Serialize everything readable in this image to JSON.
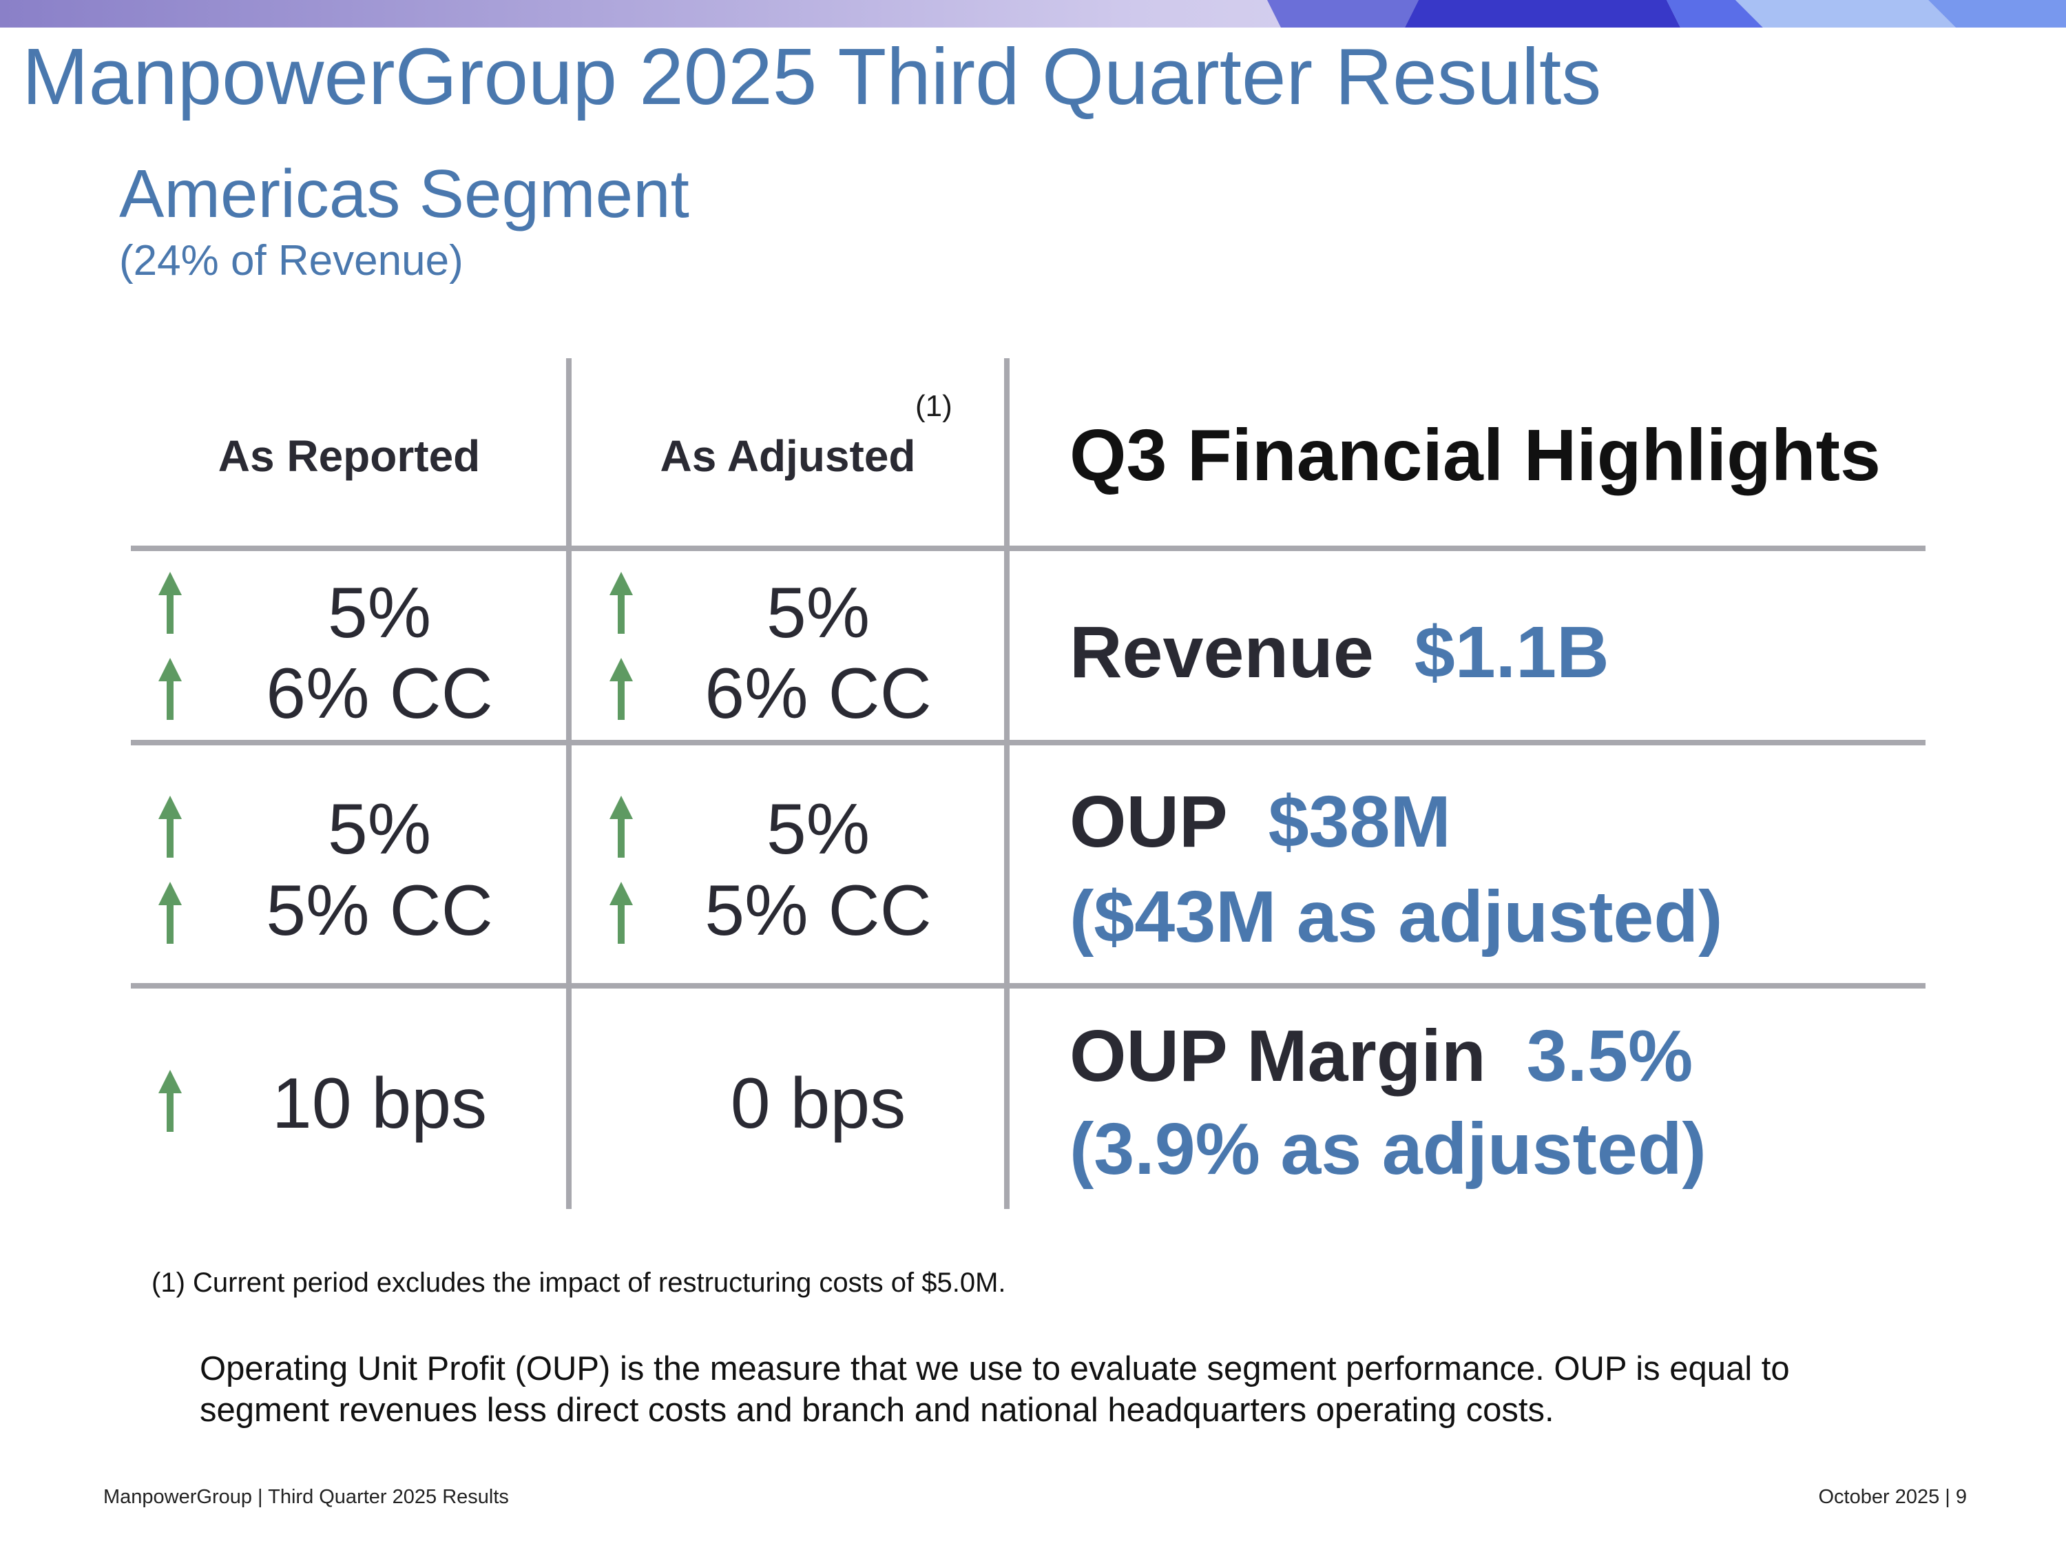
{
  "slide": {
    "title": "ManpowerGroup 2025 Third Quarter Results",
    "segment_title": "Americas Segment",
    "segment_subtitle": "(24% of Revenue)"
  },
  "table": {
    "col_reported": "As Reported",
    "col_adjusted": "As Adjusted",
    "adjusted_footnote_mark": "(1)",
    "highlights_header": "Q3 Financial Highlights",
    "rows": [
      {
        "reported": [
          "5%",
          "6% CC"
        ],
        "adjusted": [
          "5%",
          "6% CC"
        ],
        "highlight_label": "Revenue",
        "highlight_value": "$1.1B"
      },
      {
        "reported": [
          "5%",
          "5% CC"
        ],
        "adjusted": [
          "5%",
          "5% CC"
        ],
        "highlight_label": "OUP",
        "highlight_value": "$38M",
        "highlight_adjusted": "($43M as adjusted)"
      },
      {
        "reported": [
          "10 bps"
        ],
        "adjusted": [
          "0 bps"
        ],
        "highlight_label": "OUP Margin",
        "highlight_value": "3.5%",
        "highlight_adjusted": "(3.9% as adjusted)"
      }
    ]
  },
  "footnote": "(1)  Current period excludes the impact of restructuring costs of $5.0M.",
  "explanation": "Operating Unit Profit (OUP) is the measure that we use to evaluate segment performance.  OUP is equal to segment revenues less direct costs and branch and national headquarters operating costs.",
  "footer": {
    "left": "ManpowerGroup  |  Third Quarter 2025 Results",
    "right": "October 2025   |   9"
  },
  "colors": {
    "title_blue": "#4a78ae",
    "arrow_green": "#5e9a62",
    "rule_gray": "#a8a8ae",
    "text_dark": "#2a2a33"
  },
  "icons": [
    "arrow-up-icon"
  ]
}
